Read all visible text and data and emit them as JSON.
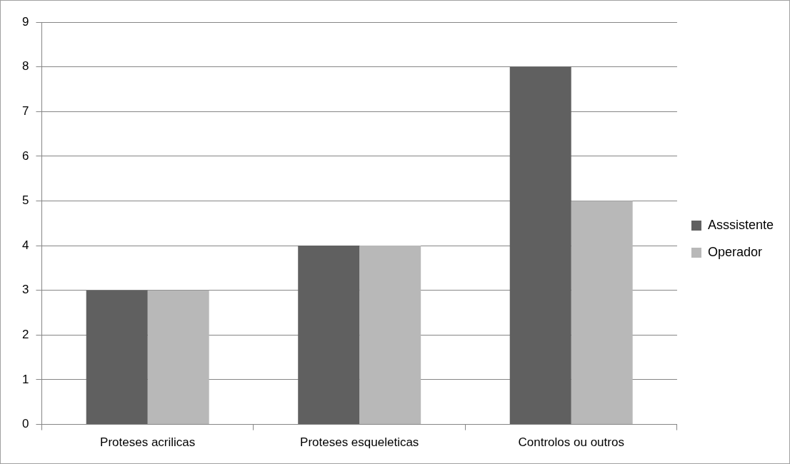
{
  "chart_data": {
    "type": "bar",
    "categories": [
      "Proteses acrilicas",
      "Proteses esqueleticas",
      "Controlos ou outros"
    ],
    "series": [
      {
        "name": "Asssistente",
        "color": "#606060",
        "values": [
          3,
          4,
          8
        ]
      },
      {
        "name": "Operador",
        "color": "#b8b8b8",
        "values": [
          3,
          4,
          5
        ]
      }
    ],
    "ylim": [
      0,
      9
    ],
    "yticks": [
      0,
      1,
      2,
      3,
      4,
      5,
      6,
      7,
      8,
      9
    ],
    "grid": "y",
    "legend": "right"
  }
}
